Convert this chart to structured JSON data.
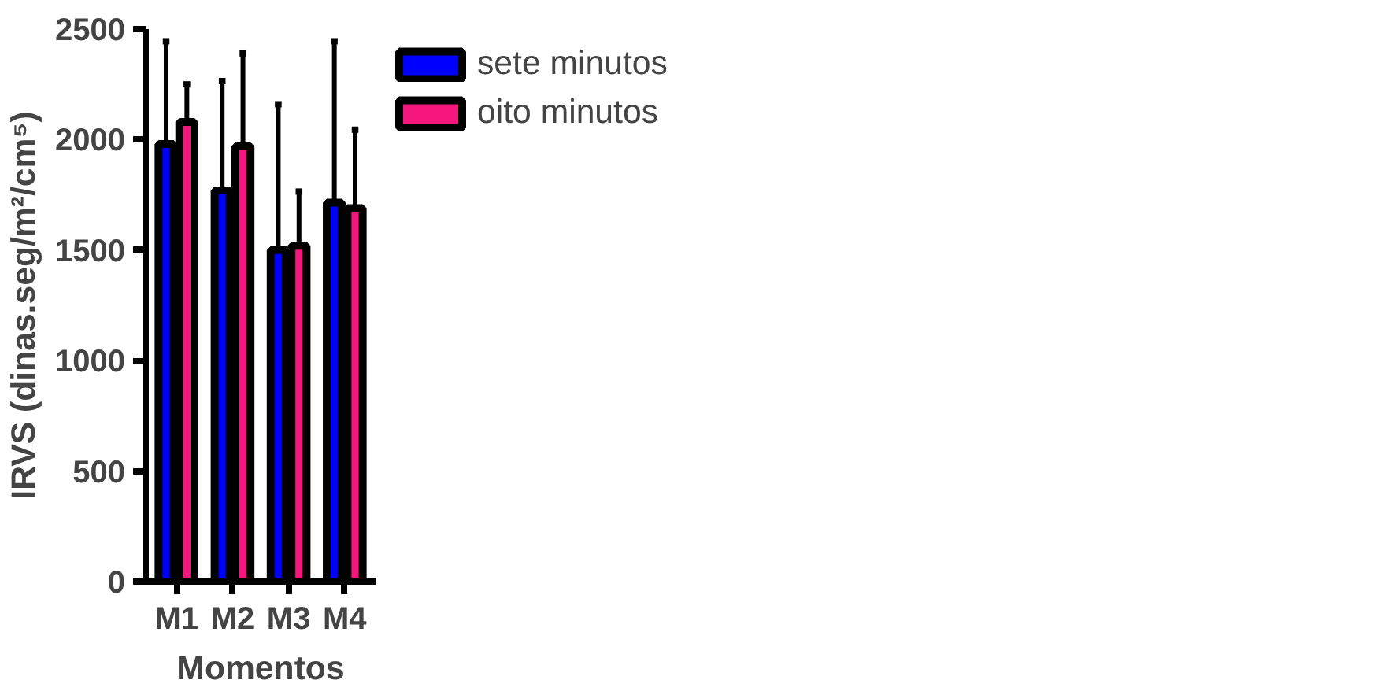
{
  "chart_data": {
    "type": "bar",
    "xlabel": "Momentos",
    "ylabel": "IRVS (dinas.seg/m²/cm⁵)",
    "categories": [
      "M1",
      "M2",
      "M3",
      "M4"
    ],
    "series": [
      {
        "name": "sete minutos",
        "color": "#0000ff",
        "values": [
          1980,
          1770,
          1500,
          1715
        ],
        "errors": [
          [
            1980,
            2445
          ],
          [
            1770,
            2265
          ],
          [
            1500,
            2160
          ],
          [
            1715,
            2445
          ]
        ]
      },
      {
        "name": "oito minutos",
        "color": "#f5167e",
        "values": [
          2080,
          1970,
          1520,
          1690
        ],
        "errors": [
          [
            2080,
            2250
          ],
          [
            1970,
            2390
          ],
          [
            1520,
            1765
          ],
          [
            1690,
            2045
          ]
        ]
      }
    ],
    "ylim": [
      0,
      2500
    ],
    "yticks": [
      0,
      500,
      1000,
      1500,
      2000,
      2500
    ],
    "grid": false,
    "legend": "top right"
  }
}
